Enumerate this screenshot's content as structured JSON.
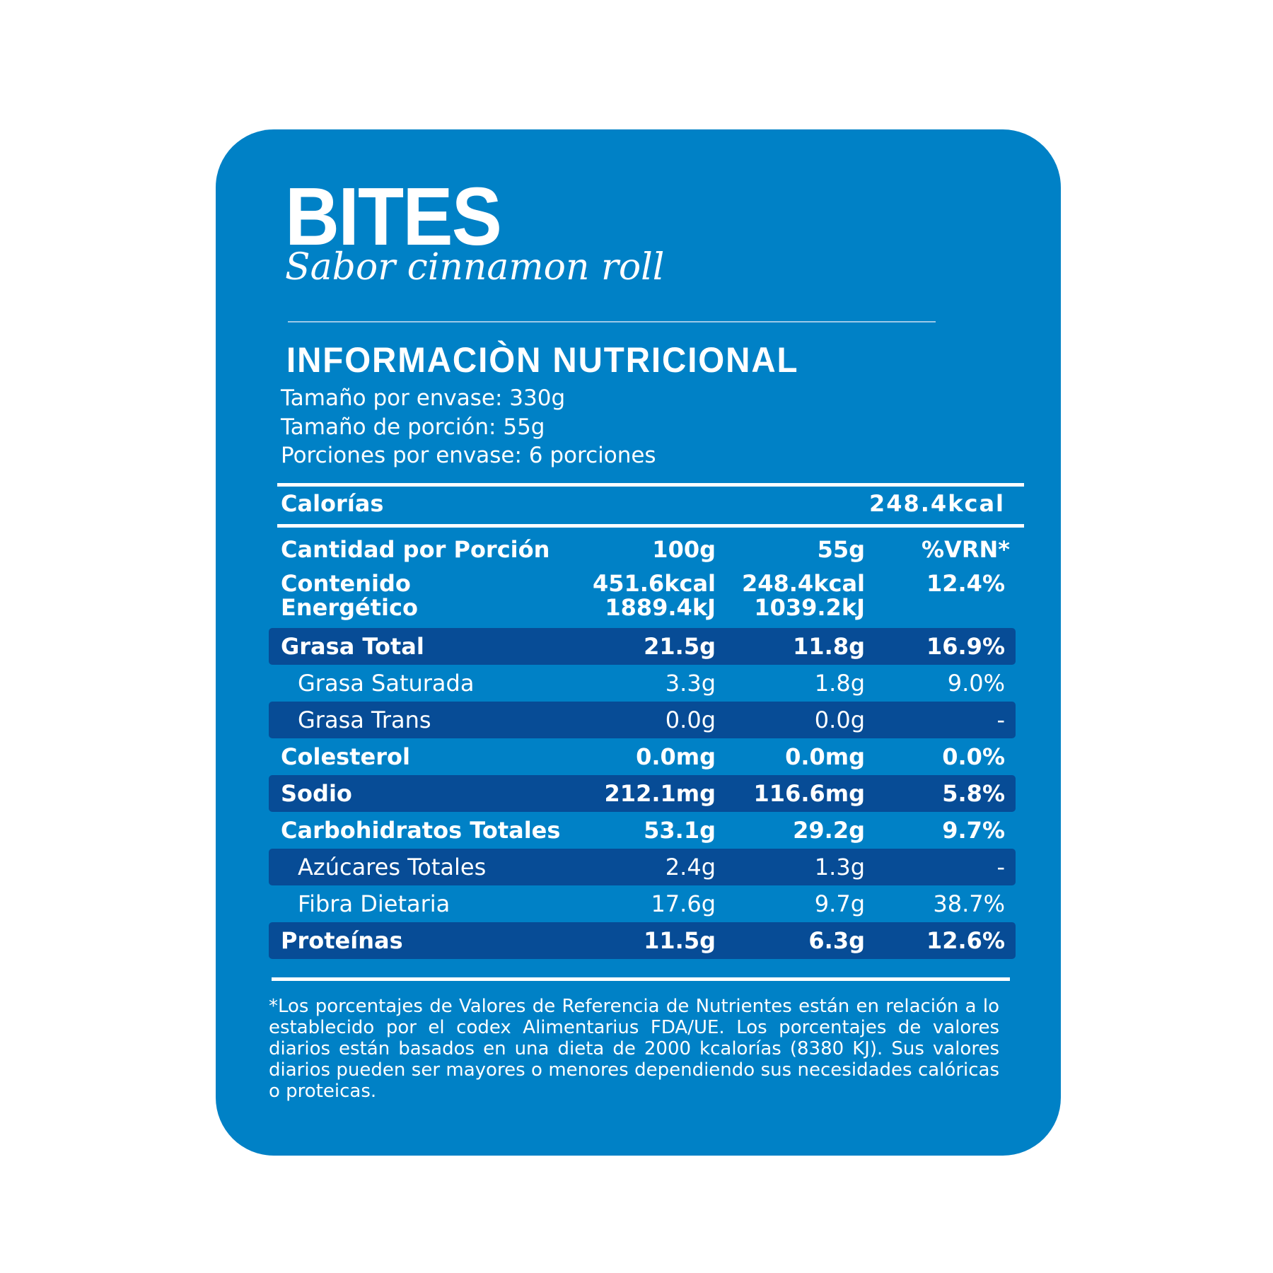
{
  "brand": "BITES",
  "flavor": "Sabor cinnamon roll",
  "heading": "INFORMACIÒN NUTRICIONAL",
  "serving": [
    "Tamaño por envase: 330g",
    "Tamaño de porción: 55g",
    "Porciones por envase: 6 porciones"
  ],
  "calories": {
    "label": "Calorías",
    "value": "248.4kcal"
  },
  "header": {
    "label": "Cantidad por Porción",
    "c1": "100g",
    "c2": "55g",
    "c3": "%VRN*"
  },
  "energy": {
    "label1": "Contenido",
    "label2": "Energético",
    "c1a": "451.6kcal",
    "c1b": "1889.4kJ",
    "c2a": "248.4kcal",
    "c2b": "1039.2kJ",
    "c3": "12.4%"
  },
  "rows": [
    {
      "label": "Grasa Total",
      "c1": "21.5g",
      "c2": "11.8g",
      "c3": "16.9%"
    },
    {
      "label": "Grasa Saturada",
      "c1": "3.3g",
      "c2": "1.8g",
      "c3": "9.0%"
    },
    {
      "label": "Grasa Trans",
      "c1": "0.0g",
      "c2": "0.0g",
      "c3": "-"
    },
    {
      "label": "Colesterol",
      "c1": "0.0mg",
      "c2": "0.0mg",
      "c3": "0.0%"
    },
    {
      "label": "Sodio",
      "c1": "212.1mg",
      "c2": "116.6mg",
      "c3": "5.8%"
    },
    {
      "label": "Carbohidratos Totales",
      "c1": "53.1g",
      "c2": "29.2g",
      "c3": "9.7%"
    },
    {
      "label": "Azúcares Totales",
      "c1": "2.4g",
      "c2": "1.3g",
      "c3": "-"
    },
    {
      "label": "Fibra Dietaria",
      "c1": "17.6g",
      "c2": "9.7g",
      "c3": "38.7%"
    },
    {
      "label": "Proteínas",
      "c1": "11.5g",
      "c2": "6.3g",
      "c3": "12.6%"
    }
  ],
  "footnote": "*Los porcentajes de Valores de Referencia de Nutrientes están en relación a lo establecido por el codex Alimentarius FDA/UE. Los porcentajes de valores diarios están basados en una dieta de 2000 kcalorías (8380 KJ). Sus valores diarios pueden ser mayores o menores dependiendo sus necesidades calóricas o proteicas.",
  "colors": {
    "card": "#0081c6",
    "band": "#074c96",
    "text": "#ffffff"
  }
}
